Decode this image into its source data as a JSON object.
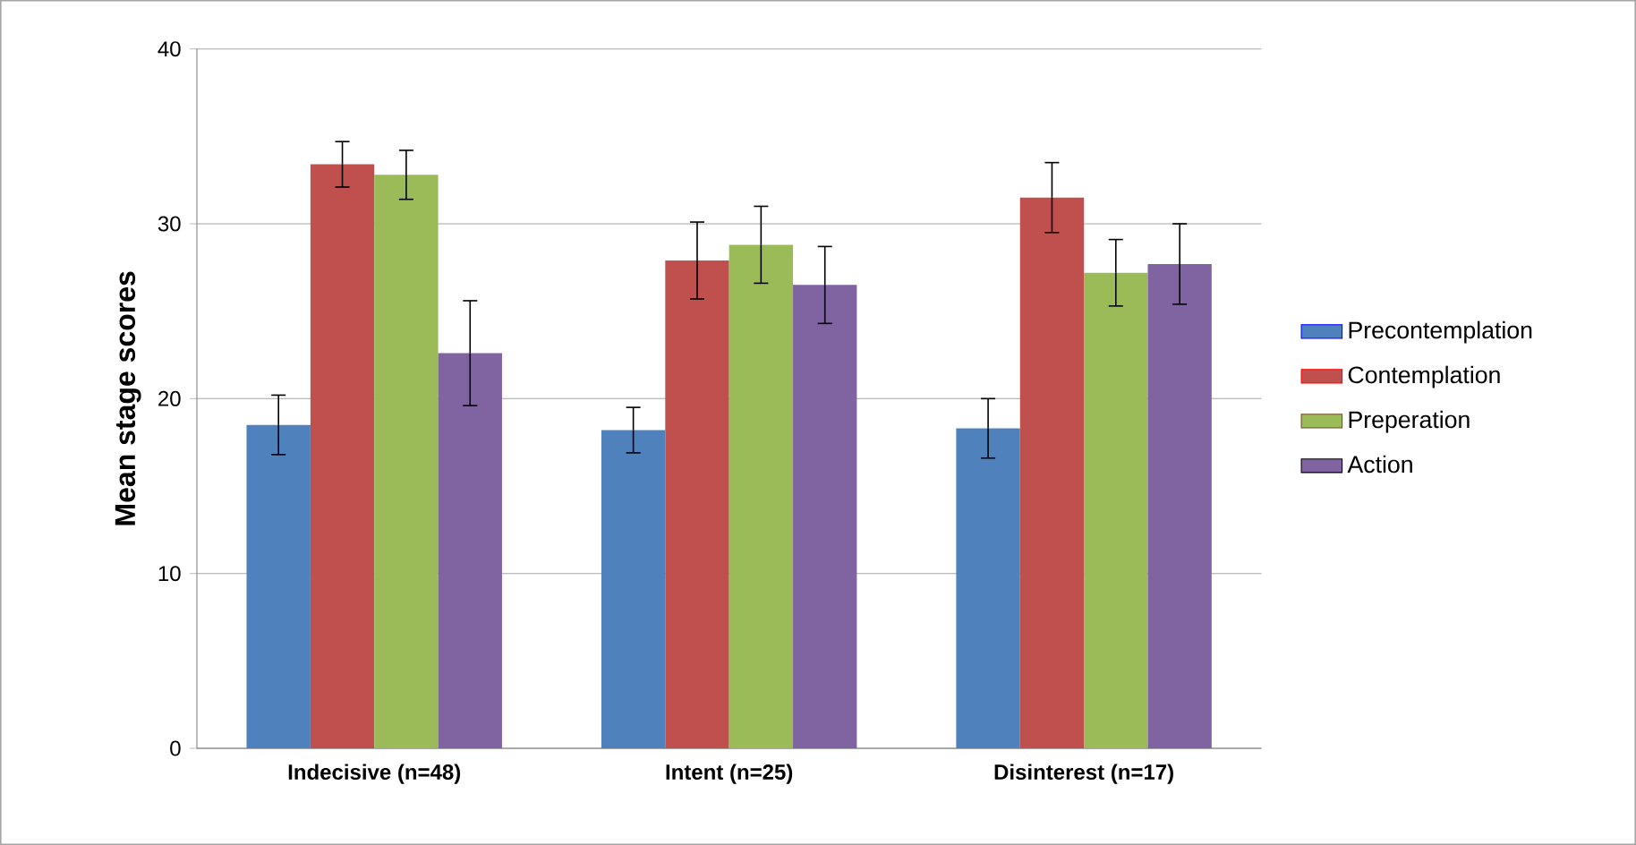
{
  "chart_data": {
    "type": "bar",
    "ylabel": "Mean stage scores",
    "categories": [
      "Indecisive (n=48)",
      "Intent (n=25)",
      "Disinterest (n=17)"
    ],
    "series": [
      {
        "name": "Precontemplation",
        "color": "#4f81bd",
        "values": [
          18.5,
          18.2,
          18.3
        ],
        "errors": [
          1.7,
          1.3,
          1.7
        ]
      },
      {
        "name": "Contemplation",
        "color": "#c0504d",
        "values": [
          33.4,
          27.9,
          31.5
        ],
        "errors": [
          1.3,
          2.2,
          2.0
        ]
      },
      {
        "name": "Preperation",
        "color": "#9bbb59",
        "values": [
          32.8,
          28.8,
          27.2
        ],
        "errors": [
          1.4,
          2.2,
          1.9
        ]
      },
      {
        "name": "Action",
        "color": "#8064a2",
        "values": [
          22.6,
          26.5,
          27.7
        ],
        "errors": [
          3.0,
          2.2,
          2.3
        ]
      }
    ],
    "ylim": [
      0,
      40
    ],
    "yticks": [
      0,
      10,
      20,
      30,
      40
    ],
    "grid": "y",
    "legend": "right"
  }
}
